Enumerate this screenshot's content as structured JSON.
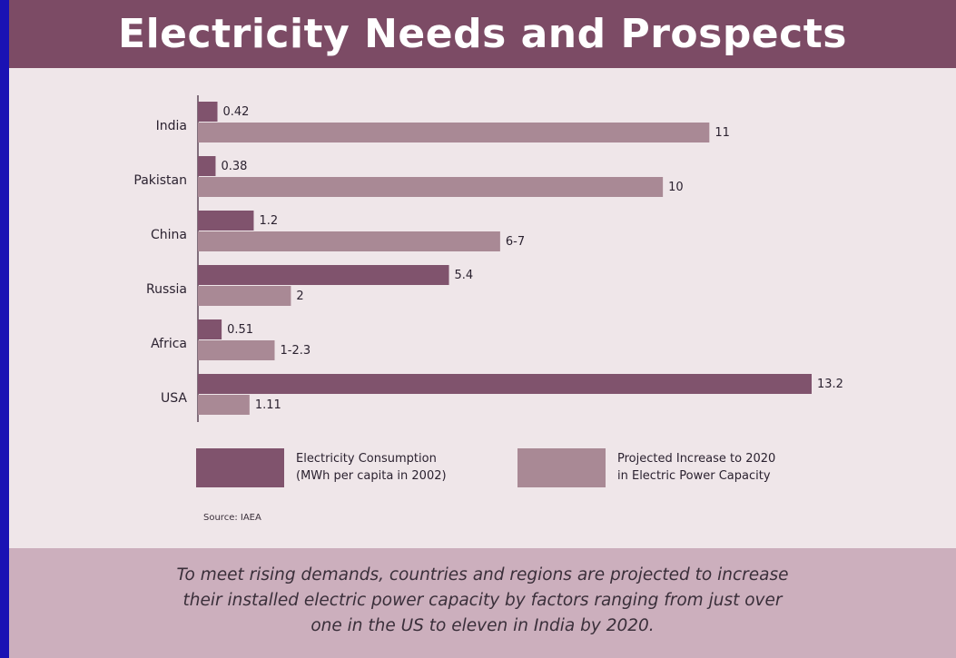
{
  "title": "Electricity Needs and Prospects",
  "colors": {
    "frame": "#1a12b4",
    "panel_background": "#efe6e9",
    "title_bar": "#7c4b65",
    "footer": "#ccafbd",
    "consumption": "#80536d",
    "projected": "#a98995"
  },
  "chart_data": {
    "type": "bar",
    "orientation": "horizontal",
    "categories": [
      "India",
      "Pakistan",
      "China",
      "Russia",
      "Africa",
      "USA"
    ],
    "series": [
      {
        "name": "Electricity Consumption (MWh per capita in 2002)",
        "values": [
          0.42,
          0.38,
          1.2,
          5.4,
          0.51,
          13.2
        ],
        "labels": [
          "0.42",
          "0.38",
          "1.2",
          "5.4",
          "0.51",
          "13.2"
        ]
      },
      {
        "name": "Projected Increase to 2020 in Electric Power Capacity",
        "values": [
          11,
          10,
          6.5,
          2,
          1.65,
          1.11
        ],
        "labels": [
          "11",
          "10",
          "6-7",
          "2",
          "1-2.3",
          "1.11"
        ]
      }
    ],
    "grid": false,
    "legend_position": "bottom"
  },
  "legend": {
    "consumption": "Electricity Consumption\n(MWh per capita in 2002)",
    "projected": "Projected Increase to 2020\nin Electric Power Capacity"
  },
  "source": "Source: IAEA",
  "caption": "To meet rising demands, countries and regions are projected to increase\ntheir installed electric power capacity by factors ranging from just over\none in the US to eleven in India by 2020."
}
